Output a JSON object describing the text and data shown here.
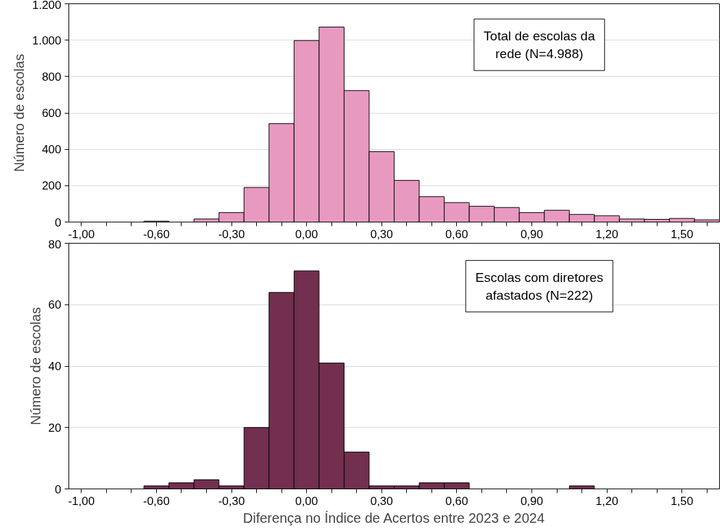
{
  "chart_data": [
    {
      "type": "bar",
      "ylabel": "Número de escolas",
      "categories": [
        "-1,00",
        null,
        null,
        "-0,60",
        null,
        null,
        "-0,30",
        null,
        null,
        "0,00",
        null,
        null,
        "0,30",
        null,
        null,
        "0,60",
        null,
        null,
        "0,90",
        null,
        null,
        "1,20",
        null,
        null,
        "1,50",
        null
      ],
      "series": [
        {
          "color": "#e899c0",
          "values": [
            null,
            null,
            null,
            5,
            null,
            17,
            52,
            190,
            541,
            998,
            1072,
            723,
            387,
            229,
            140,
            107,
            87,
            80,
            52,
            65,
            42,
            35,
            17,
            15,
            20,
            12
          ]
        }
      ],
      "ylim": [
        0,
        1200
      ],
      "yticks": [
        0,
        200,
        400,
        600,
        800,
        {
          "value": 1000,
          "label": "1.000"
        },
        {
          "value": 1200,
          "label": "1.200"
        }
      ],
      "grid": "y",
      "annotations": [
        "Total de escolas da\nrede (N=4.988)"
      ]
    },
    {
      "type": "bar",
      "ylabel": "Número de escolas",
      "xlabel": "Diferença no Índice de Acertos entre 2023 e 2024",
      "categories": [
        "-1,00",
        null,
        null,
        "-0,60",
        null,
        null,
        "-0,30",
        null,
        null,
        "0,00",
        null,
        null,
        "0,30",
        null,
        null,
        "0,60",
        null,
        null,
        "0,90",
        null,
        null,
        "1,20",
        null,
        null,
        "1,50",
        null
      ],
      "series": [
        {
          "color": "#722f4f",
          "values": [
            0,
            0,
            0,
            1,
            2,
            3,
            1,
            20,
            64,
            71,
            41,
            12,
            1,
            1,
            2,
            2,
            0,
            0,
            0,
            0,
            1,
            0,
            0,
            0,
            0,
            0
          ]
        }
      ],
      "ylim": [
        0,
        80
      ],
      "yticks": [
        0,
        20,
        40,
        60,
        80
      ],
      "grid": "y",
      "annotations": [
        "Escolas com diretores\nafastados (N=222)"
      ]
    }
  ]
}
